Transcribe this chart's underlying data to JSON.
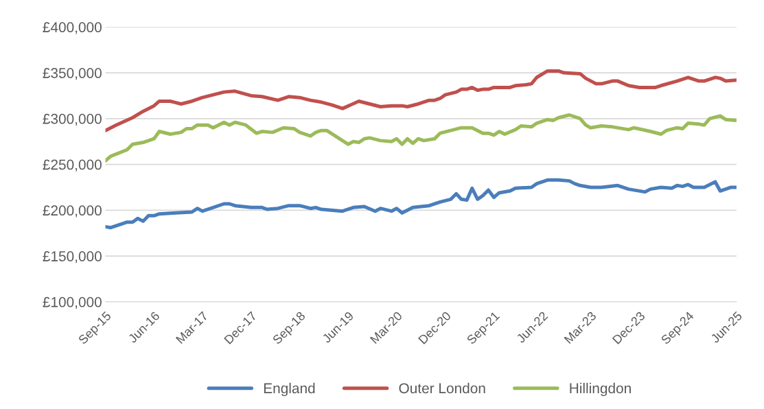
{
  "chart_data": {
    "type": "line",
    "series": [
      {
        "name": "England",
        "color": "#4a7ebb",
        "x": [
          "2015-09",
          "2015-10",
          "2015-12",
          "2016-01",
          "2016-02",
          "2016-03",
          "2016-04",
          "2016-05",
          "2016-06",
          "2016-07",
          "2016-10",
          "2017-01",
          "2017-02",
          "2017-03",
          "2017-05",
          "2017-07",
          "2017-08",
          "2017-09",
          "2017-12",
          "2018-02",
          "2018-03",
          "2018-05",
          "2018-07",
          "2018-09",
          "2018-11",
          "2018-12",
          "2019-01",
          "2019-05",
          "2019-07",
          "2019-09",
          "2019-11",
          "2019-12",
          "2020-02",
          "2020-03",
          "2020-04",
          "2020-06",
          "2020-09",
          "2020-11",
          "2021-01",
          "2021-02",
          "2021-03",
          "2021-04",
          "2021-05",
          "2021-06",
          "2021-07",
          "2021-08",
          "2021-09",
          "2021-10",
          "2021-12",
          "2022-01",
          "2022-04",
          "2022-05",
          "2022-07",
          "2022-09",
          "2022-11",
          "2022-12",
          "2023-01",
          "2023-03",
          "2023-05",
          "2023-08",
          "2023-10",
          "2024-01",
          "2024-02",
          "2024-04",
          "2024-06",
          "2024-07",
          "2024-08",
          "2024-09",
          "2024-10",
          "2024-12",
          "2025-02",
          "2025-03",
          "2025-05",
          "2025-06"
        ],
        "values": [
          182000,
          181000,
          185000,
          187000,
          187000,
          191000,
          188000,
          194000,
          194000,
          196000,
          197000,
          198000,
          202000,
          199000,
          203000,
          207000,
          207000,
          205000,
          203000,
          203000,
          201000,
          202000,
          205000,
          205000,
          202000,
          203000,
          201000,
          199000,
          203000,
          204000,
          199000,
          202000,
          199000,
          202000,
          197000,
          203000,
          205000,
          209000,
          212000,
          218000,
          212000,
          211000,
          224000,
          212000,
          216000,
          222000,
          214000,
          219000,
          221000,
          224000,
          225000,
          229000,
          233000,
          233000,
          232000,
          229000,
          227000,
          225000,
          225000,
          227000,
          223000,
          220000,
          223000,
          225000,
          224000,
          227000,
          226000,
          228000,
          225000,
          225000,
          231000,
          221000,
          225000,
          225000
        ]
      },
      {
        "name": "Outer London",
        "color": "#c0504d",
        "x": [
          "2015-09",
          "2015-11",
          "2016-02",
          "2016-04",
          "2016-06",
          "2016-07",
          "2016-09",
          "2016-11",
          "2017-01",
          "2017-03",
          "2017-05",
          "2017-07",
          "2017-09",
          "2017-12",
          "2018-02",
          "2018-05",
          "2018-07",
          "2018-09",
          "2018-11",
          "2019-01",
          "2019-03",
          "2019-05",
          "2019-08",
          "2019-12",
          "2020-02",
          "2020-04",
          "2020-05",
          "2020-07",
          "2020-09",
          "2020-10",
          "2020-11",
          "2020-12",
          "2021-02",
          "2021-03",
          "2021-04",
          "2021-05",
          "2021-06",
          "2021-07",
          "2021-08",
          "2021-09",
          "2021-12",
          "2022-01",
          "2022-03",
          "2022-04",
          "2022-05",
          "2022-07",
          "2022-09",
          "2022-10",
          "2023-01",
          "2023-02",
          "2023-04",
          "2023-05",
          "2023-07",
          "2023-08",
          "2023-10",
          "2023-12",
          "2024-03",
          "2024-04",
          "2024-07",
          "2024-09",
          "2024-11",
          "2024-12",
          "2025-02",
          "2025-03",
          "2025-04",
          "2025-06"
        ],
        "values": [
          287000,
          293000,
          301000,
          308000,
          314000,
          319000,
          319000,
          316000,
          319000,
          323000,
          326000,
          329000,
          330000,
          325000,
          324000,
          320000,
          324000,
          323000,
          320000,
          318000,
          315000,
          311000,
          319000,
          313000,
          314000,
          314000,
          313000,
          316000,
          320000,
          320000,
          322000,
          326000,
          329000,
          332000,
          332000,
          334000,
          331000,
          332000,
          332000,
          334000,
          334000,
          336000,
          337000,
          338000,
          345000,
          352000,
          352000,
          350000,
          349000,
          344000,
          338000,
          338000,
          341000,
          341000,
          336000,
          334000,
          334000,
          336000,
          341000,
          345000,
          341000,
          341000,
          345000,
          344000,
          341000,
          342000
        ]
      },
      {
        "name": "Hillingdon",
        "color": "#9bbb59",
        "x": [
          "2015-09",
          "2015-10",
          "2016-01",
          "2016-02",
          "2016-04",
          "2016-06",
          "2016-07",
          "2016-09",
          "2016-11",
          "2016-12",
          "2017-01",
          "2017-02",
          "2017-04",
          "2017-05",
          "2017-07",
          "2017-08",
          "2017-09",
          "2017-11",
          "2018-01",
          "2018-02",
          "2018-04",
          "2018-06",
          "2018-08",
          "2018-09",
          "2018-11",
          "2018-12",
          "2019-01",
          "2019-02",
          "2019-06",
          "2019-07",
          "2019-08",
          "2019-09",
          "2019-10",
          "2019-12",
          "2020-02",
          "2020-03",
          "2020-04",
          "2020-05",
          "2020-06",
          "2020-07",
          "2020-08",
          "2020-10",
          "2020-11",
          "2021-01",
          "2021-03",
          "2021-05",
          "2021-07",
          "2021-08",
          "2021-09",
          "2021-10",
          "2021-11",
          "2022-01",
          "2022-02",
          "2022-04",
          "2022-05",
          "2022-07",
          "2022-08",
          "2022-09",
          "2022-11",
          "2023-01",
          "2023-02",
          "2023-03",
          "2023-05",
          "2023-07",
          "2023-10",
          "2023-11",
          "2024-02",
          "2024-04",
          "2024-05",
          "2024-07",
          "2024-08",
          "2024-09",
          "2024-11",
          "2024-12",
          "2025-01",
          "2025-03",
          "2025-04",
          "2025-06"
        ],
        "values": [
          254000,
          259000,
          266000,
          272000,
          274000,
          278000,
          286000,
          283000,
          285000,
          289000,
          289000,
          293000,
          293000,
          290000,
          296000,
          293000,
          296000,
          293000,
          284000,
          286000,
          285000,
          290000,
          289000,
          285000,
          281000,
          285000,
          287000,
          287000,
          272000,
          275000,
          274000,
          278000,
          279000,
          276000,
          275000,
          278000,
          272000,
          278000,
          273000,
          278000,
          276000,
          278000,
          284000,
          287000,
          290000,
          290000,
          284000,
          284000,
          282000,
          286000,
          283000,
          288000,
          292000,
          291000,
          295000,
          299000,
          298000,
          301000,
          304000,
          300000,
          293000,
          290000,
          292000,
          291000,
          288000,
          290000,
          286000,
          283000,
          287000,
          290000,
          289000,
          295000,
          294000,
          293000,
          300000,
          303000,
          299000,
          298000
        ]
      }
    ],
    "xlim": [
      "2015-09",
      "2025-06"
    ],
    "xticks": [
      {
        "value": "2015-09",
        "label": "Sep-15"
      },
      {
        "value": "2016-06",
        "label": "Jun-16"
      },
      {
        "value": "2017-03",
        "label": "Mar-17"
      },
      {
        "value": "2017-12",
        "label": "Dec-17"
      },
      {
        "value": "2018-09",
        "label": "Sep-18"
      },
      {
        "value": "2019-06",
        "label": "Jun-19"
      },
      {
        "value": "2020-03",
        "label": "Mar-20"
      },
      {
        "value": "2020-12",
        "label": "Dec-20"
      },
      {
        "value": "2021-09",
        "label": "Sep-21"
      },
      {
        "value": "2022-06",
        "label": "Jun-22"
      },
      {
        "value": "2023-03",
        "label": "Mar-23"
      },
      {
        "value": "2023-12",
        "label": "Dec-23"
      },
      {
        "value": "2024-09",
        "label": "Sep-24"
      },
      {
        "value": "2025-06",
        "label": "Jun-25"
      }
    ],
    "ylim": [
      100000,
      400000
    ],
    "yticks": [
      {
        "value": 100000,
        "label": "£100,000"
      },
      {
        "value": 150000,
        "label": "£150,000"
      },
      {
        "value": 200000,
        "label": "£200,000"
      },
      {
        "value": 250000,
        "label": "£250,000"
      },
      {
        "value": 300000,
        "label": "£300,000"
      },
      {
        "value": 350000,
        "label": "£350,000"
      },
      {
        "value": 400000,
        "label": "£400,000"
      }
    ],
    "grid": "y",
    "legend": "bottom"
  }
}
